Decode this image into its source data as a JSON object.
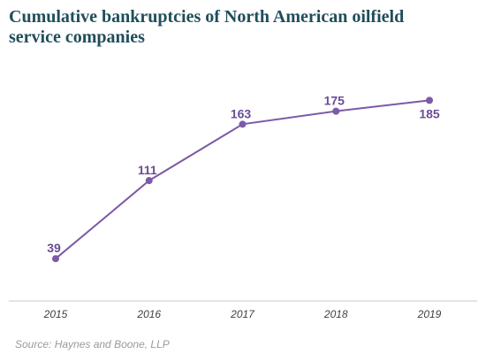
{
  "chart_data": {
    "type": "line",
    "title": "Cumulative bankruptcies of North American oilfield service companies",
    "categories": [
      "2015",
      "2016",
      "2017",
      "2018",
      "2019"
    ],
    "series": [
      {
        "values": [
          39,
          111,
          163,
          175,
          185
        ],
        "data_labels": [
          "39",
          "111",
          "163",
          "175",
          "185"
        ]
      }
    ],
    "xlabel": "",
    "ylabel": "",
    "ylim": [
      0,
      200
    ],
    "grid": false,
    "legend": "none",
    "line_color": "#7b5aa6",
    "label_color": "#6a4c96"
  },
  "source": "Source: Haynes and Boone, LLP"
}
